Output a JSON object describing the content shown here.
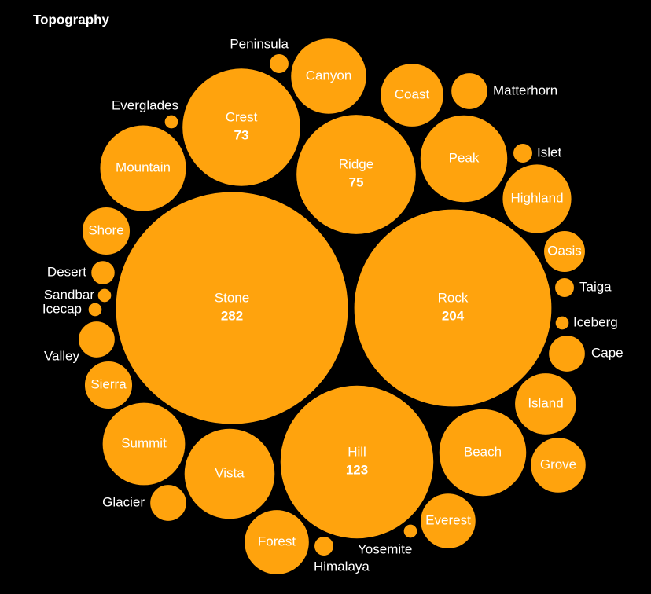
{
  "chart_data": {
    "type": "bubble",
    "title": "Topography",
    "color": "#ffa30d",
    "categories": [
      "Stone",
      "Rock",
      "Hill",
      "Ridge",
      "Crest",
      "Canyon",
      "Coast",
      "Peak",
      "Mountain",
      "Highland",
      "Matterhorn",
      "Peninsula",
      "Everglades",
      "Islet",
      "Shore",
      "Oasis",
      "Desert",
      "Sandbar",
      "Icecap",
      "Taiga",
      "Iceberg",
      "Valley",
      "Cape",
      "Sierra",
      "Island",
      "Summit",
      "Beach",
      "Grove",
      "Vista",
      "Glacier",
      "Forest",
      "Everest",
      "Yosemite",
      "Himalaya"
    ],
    "values": [
      282,
      204,
      123,
      75,
      73,
      30,
      21,
      40,
      39,
      25,
      7,
      2,
      1,
      2,
      12,
      9,
      3,
      1,
      1,
      2,
      1,
      7,
      7,
      12,
      20,
      36,
      40,
      16,
      43,
      7,
      22,
      16,
      1,
      2
    ]
  }
}
